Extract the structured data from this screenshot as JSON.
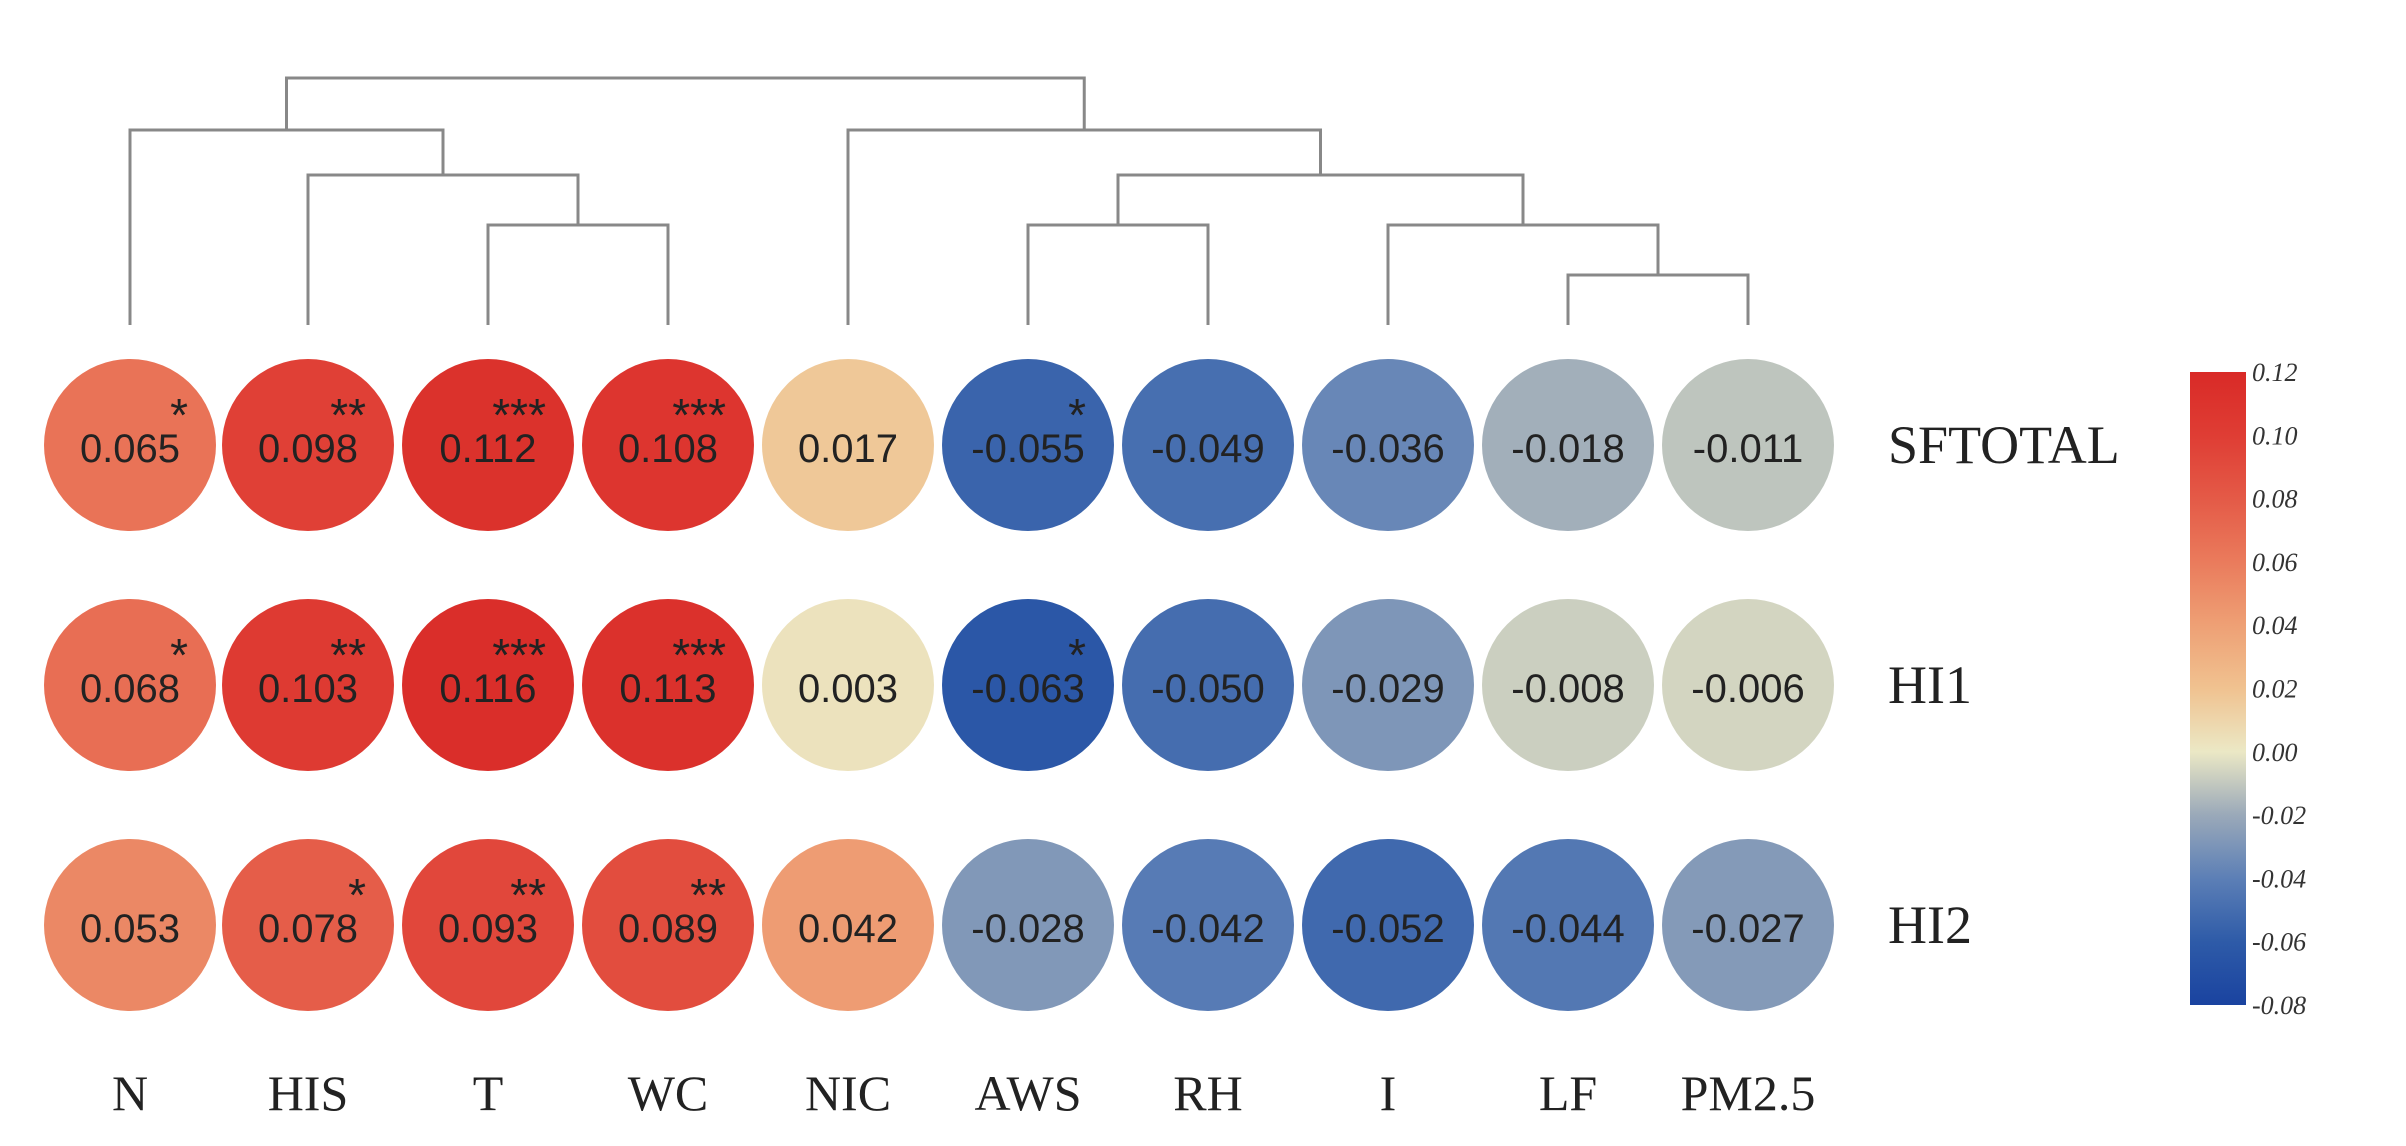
{
  "chart_data": {
    "type": "heatmap",
    "title": "",
    "columns": [
      "N",
      "HIS",
      "T",
      "WC",
      "NIC",
      "AWS",
      "RH",
      "I",
      "LF",
      "PM2.5"
    ],
    "rows": [
      "SFTOTAL",
      "HI1",
      "HI2"
    ],
    "values": [
      [
        0.065,
        0.098,
        0.112,
        0.108,
        0.017,
        -0.055,
        -0.049,
        -0.036,
        -0.018,
        -0.011
      ],
      [
        0.068,
        0.103,
        0.116,
        0.113,
        0.003,
        -0.063,
        -0.05,
        -0.029,
        -0.008,
        -0.006
      ],
      [
        0.053,
        0.078,
        0.093,
        0.089,
        0.042,
        -0.028,
        -0.042,
        -0.052,
        -0.044,
        -0.027
      ]
    ],
    "value_labels": [
      [
        "0.065",
        "0.098",
        "0.112",
        "0.108",
        "0.017",
        "-0.055",
        "-0.049",
        "-0.036",
        "-0.018",
        "-0.011"
      ],
      [
        "0.068",
        "0.103",
        "0.116",
        "0.113",
        "0.003",
        "-0.063",
        "-0.050",
        "-0.029",
        "-0.008",
        "-0.006"
      ],
      [
        "0.053",
        "0.078",
        "0.093",
        "0.089",
        "0.042",
        "-0.028",
        "-0.042",
        "-0.052",
        "-0.044",
        "-0.027"
      ]
    ],
    "significance": [
      [
        "*",
        "**",
        "***",
        "***",
        "",
        "*",
        "",
        "",
        "",
        ""
      ],
      [
        "*",
        "**",
        "***",
        "***",
        "",
        "*",
        "",
        "",
        "",
        ""
      ],
      [
        "",
        "*",
        "**",
        "**",
        "",
        "",
        "",
        "",
        "",
        ""
      ]
    ],
    "colorbar": {
      "min": -0.08,
      "max": 0.12,
      "ticks": [
        "0.12",
        "0.10",
        "0.08",
        "0.06",
        "0.04",
        "0.02",
        "0.00",
        "-0.02",
        "-0.04",
        "-0.06",
        "-0.08"
      ],
      "tick_values": [
        0.12,
        0.1,
        0.08,
        0.06,
        0.04,
        0.02,
        0.0,
        -0.02,
        -0.04,
        -0.06,
        -0.08
      ],
      "stops": [
        {
          "value": -0.08,
          "color": "#1a43a0"
        },
        {
          "value": -0.06,
          "color": "#2e5ba8"
        },
        {
          "value": -0.04,
          "color": "#5c7fb6"
        },
        {
          "value": -0.02,
          "color": "#9aa9b9"
        },
        {
          "value": 0.0,
          "color": "#ebe8c5"
        },
        {
          "value": 0.02,
          "color": "#f0c290"
        },
        {
          "value": 0.04,
          "color": "#eea075"
        },
        {
          "value": 0.06,
          "color": "#ea7b5c"
        },
        {
          "value": 0.08,
          "color": "#e45a47"
        },
        {
          "value": 0.1,
          "color": "#df3d34"
        },
        {
          "value": 0.12,
          "color": "#d92a27"
        }
      ]
    },
    "dendrogram_order": "N, (HIS, (T, WC)), (NIC, ((AWS, RH), (I, (LF, PM2.5))))"
  },
  "colors": {
    "background": "#ffffff",
    "dendrogram": "#888888",
    "text": "#222222"
  }
}
